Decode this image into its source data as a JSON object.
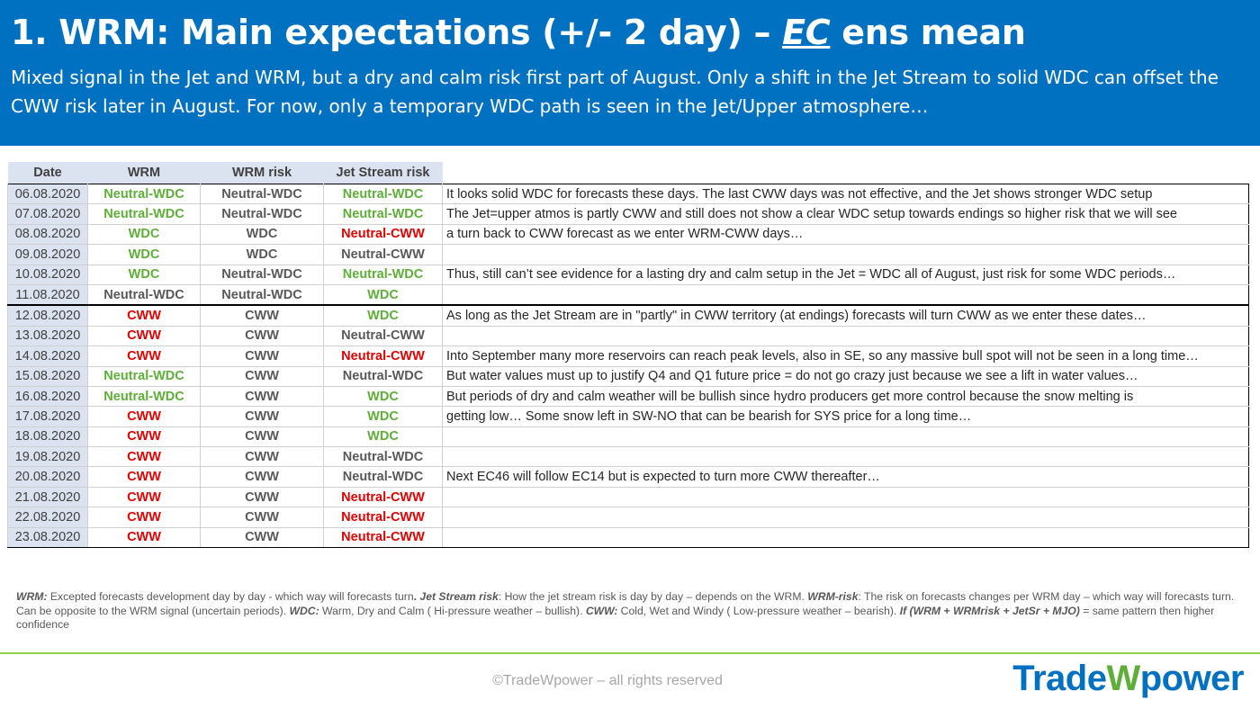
{
  "header": {
    "title": {
      "prefix": "1. WRM: Main expectations (+/- 2 day) – ",
      "em": "EC",
      "suffix": " ens mean"
    },
    "subtitle": "Mixed signal in the Jet and WRM, but a dry and calm risk first part of August. Only a shift in the Jet Stream to solid WDC can offset the CWW risk later in August. For now, only a temporary WDC path is seen in the Jet/Upper atmosphere…"
  },
  "table": {
    "palette": {
      "green": "#5fae3a",
      "red": "#e00000",
      "grey": "#595959"
    },
    "headers": [
      "Date",
      "WRM",
      "WRM risk",
      "Jet Stream risk"
    ],
    "separator_after": 5,
    "rows": [
      {
        "date": "06.08.2020",
        "wrm": {
          "text": "Neutral-WDC",
          "color": "green"
        },
        "wrm_risk": {
          "text": "Neutral-WDC",
          "color": "grey"
        },
        "jet": {
          "text": "Neutral-WDC",
          "color": "green"
        },
        "comment": "It looks solid WDC for forecasts these days. The last CWW days was not effective, and the Jet shows stronger WDC setup"
      },
      {
        "date": "07.08.2020",
        "wrm": {
          "text": "Neutral-WDC",
          "color": "green"
        },
        "wrm_risk": {
          "text": "Neutral-WDC",
          "color": "grey"
        },
        "jet": {
          "text": "Neutral-WDC",
          "color": "green"
        },
        "comment": "The Jet=upper atmos is partly CWW and still does not show a clear WDC setup towards endings so higher risk that we will see"
      },
      {
        "date": "08.08.2020",
        "wrm": {
          "text": "WDC",
          "color": "green"
        },
        "wrm_risk": {
          "text": "WDC",
          "color": "grey"
        },
        "jet": {
          "text": "Neutral-CWW",
          "color": "red"
        },
        "comment": "a turn back to CWW forecast as we enter WRM-CWW days…"
      },
      {
        "date": "09.08.2020",
        "wrm": {
          "text": "WDC",
          "color": "green"
        },
        "wrm_risk": {
          "text": "WDC",
          "color": "grey"
        },
        "jet": {
          "text": "Neutral-CWW",
          "color": "grey"
        },
        "comment": null
      },
      {
        "date": "10.08.2020",
        "wrm": {
          "text": "WDC",
          "color": "green"
        },
        "wrm_risk": {
          "text": "Neutral-WDC",
          "color": "grey"
        },
        "jet": {
          "text": "Neutral-WDC",
          "color": "green"
        },
        "comment": "Thus, still can’t see evidence for a lasting dry and calm setup in the Jet = WDC all of August, just risk for some WDC periods…"
      },
      {
        "date": "11.08.2020",
        "wrm": {
          "text": "Neutral-WDC",
          "color": "grey"
        },
        "wrm_risk": {
          "text": "Neutral-WDC",
          "color": "grey"
        },
        "jet": {
          "text": "WDC",
          "color": "green"
        },
        "comment": null
      },
      {
        "date": "12.08.2020",
        "wrm": {
          "text": "CWW",
          "color": "red"
        },
        "wrm_risk": {
          "text": "CWW",
          "color": "grey"
        },
        "jet": {
          "text": "WDC",
          "color": "green"
        },
        "comment": "As long as the Jet Stream are in \"partly\" in CWW territory (at endings) forecasts will turn CWW as we enter these dates…"
      },
      {
        "date": "13.08.2020",
        "wrm": {
          "text": "CWW",
          "color": "red"
        },
        "wrm_risk": {
          "text": "CWW",
          "color": "grey"
        },
        "jet": {
          "text": "Neutral-CWW",
          "color": "grey"
        },
        "comment": null
      },
      {
        "date": "14.08.2020",
        "wrm": {
          "text": "CWW",
          "color": "red"
        },
        "wrm_risk": {
          "text": "CWW",
          "color": "grey"
        },
        "jet": {
          "text": "Neutral-CWW",
          "color": "red"
        },
        "comment": "Into September many more reservoirs can reach peak levels, also in SE, so any massive bull spot will not be seen in a long time…"
      },
      {
        "date": "15.08.2020",
        "wrm": {
          "text": "Neutral-WDC",
          "color": "green"
        },
        "wrm_risk": {
          "text": "CWW",
          "color": "grey"
        },
        "jet": {
          "text": "Neutral-WDC",
          "color": "grey"
        },
        "comment": "But water values must up to justify Q4 and Q1 future price = do not go crazy just because we see a lift in water values…"
      },
      {
        "date": "16.08.2020",
        "wrm": {
          "text": "Neutral-WDC",
          "color": "green"
        },
        "wrm_risk": {
          "text": "CWW",
          "color": "grey"
        },
        "jet": {
          "text": "WDC",
          "color": "green"
        },
        "comment": "But periods of dry and calm weather will be bullish since hydro producers get more control because the snow melting is"
      },
      {
        "date": "17.08.2020",
        "wrm": {
          "text": "CWW",
          "color": "red"
        },
        "wrm_risk": {
          "text": "CWW",
          "color": "grey"
        },
        "jet": {
          "text": "WDC",
          "color": "green"
        },
        "comment": "getting low… Some snow left in SW-NO that can be bearish for SYS price for a long time…"
      },
      {
        "date": "18.08.2020",
        "wrm": {
          "text": "CWW",
          "color": "red"
        },
        "wrm_risk": {
          "text": "CWW",
          "color": "grey"
        },
        "jet": {
          "text": "WDC",
          "color": "green"
        },
        "comment": null
      },
      {
        "date": "19.08.2020",
        "wrm": {
          "text": "CWW",
          "color": "red"
        },
        "wrm_risk": {
          "text": "CWW",
          "color": "grey"
        },
        "jet": {
          "text": "Neutral-WDC",
          "color": "grey"
        },
        "comment": null
      },
      {
        "date": "20.08.2020",
        "wrm": {
          "text": "CWW",
          "color": "red"
        },
        "wrm_risk": {
          "text": "CWW",
          "color": "grey"
        },
        "jet": {
          "text": "Neutral-WDC",
          "color": "grey"
        },
        "comment": "Next EC46 will follow EC14 but is expected to turn more CWW thereafter…"
      },
      {
        "date": "21.08.2020",
        "wrm": {
          "text": "CWW",
          "color": "red"
        },
        "wrm_risk": {
          "text": "CWW",
          "color": "grey"
        },
        "jet": {
          "text": "Neutral-CWW",
          "color": "red"
        },
        "comment": null
      },
      {
        "date": "22.08.2020",
        "wrm": {
          "text": "CWW",
          "color": "red"
        },
        "wrm_risk": {
          "text": "CWW",
          "color": "grey"
        },
        "jet": {
          "text": "Neutral-CWW",
          "color": "red"
        },
        "comment": null
      },
      {
        "date": "23.08.2020",
        "wrm": {
          "text": "CWW",
          "color": "red"
        },
        "wrm_risk": {
          "text": "CWW",
          "color": "grey"
        },
        "jet": {
          "text": "Neutral-CWW",
          "color": "red"
        },
        "comment": null
      }
    ]
  },
  "footnote": [
    {
      "text": "WRM:",
      "style": "bi"
    },
    {
      "text": " Excepted forecasts development day by day - which way will forecasts turn",
      "style": "n"
    },
    {
      "text": ".  ",
      "style": "b"
    },
    {
      "text": "Jet Stream risk",
      "style": "bi"
    },
    {
      "text": ": How the jet stream risk is day by day – depends on the WRM. ",
      "style": "n"
    },
    {
      "text": "WRM-risk",
      "style": "bi"
    },
    {
      "text": ": The risk on forecasts changes per WRM day – which way will forecasts turn. Can be opposite to the WRM signal (uncertain periods). ",
      "style": "n"
    },
    {
      "text": "WDC:",
      "style": "bi"
    },
    {
      "text": " Warm, Dry and Calm ( Hi-pressure weather – bullish). ",
      "style": "n"
    },
    {
      "text": "CWW:",
      "style": "bi"
    },
    {
      "text": " Cold, Wet and Windy ( Low-pressure weather – bearish). ",
      "style": "n"
    },
    {
      "text": "If (WRM + WRMrisk + JetSr + MJO)",
      "style": "bi"
    },
    {
      "text": " = same pattern then higher confidence",
      "style": "n"
    }
  ],
  "footer": {
    "copyright": "©TradeWpower – all rights reserved",
    "logo": [
      "Trade",
      "W",
      "power"
    ]
  }
}
